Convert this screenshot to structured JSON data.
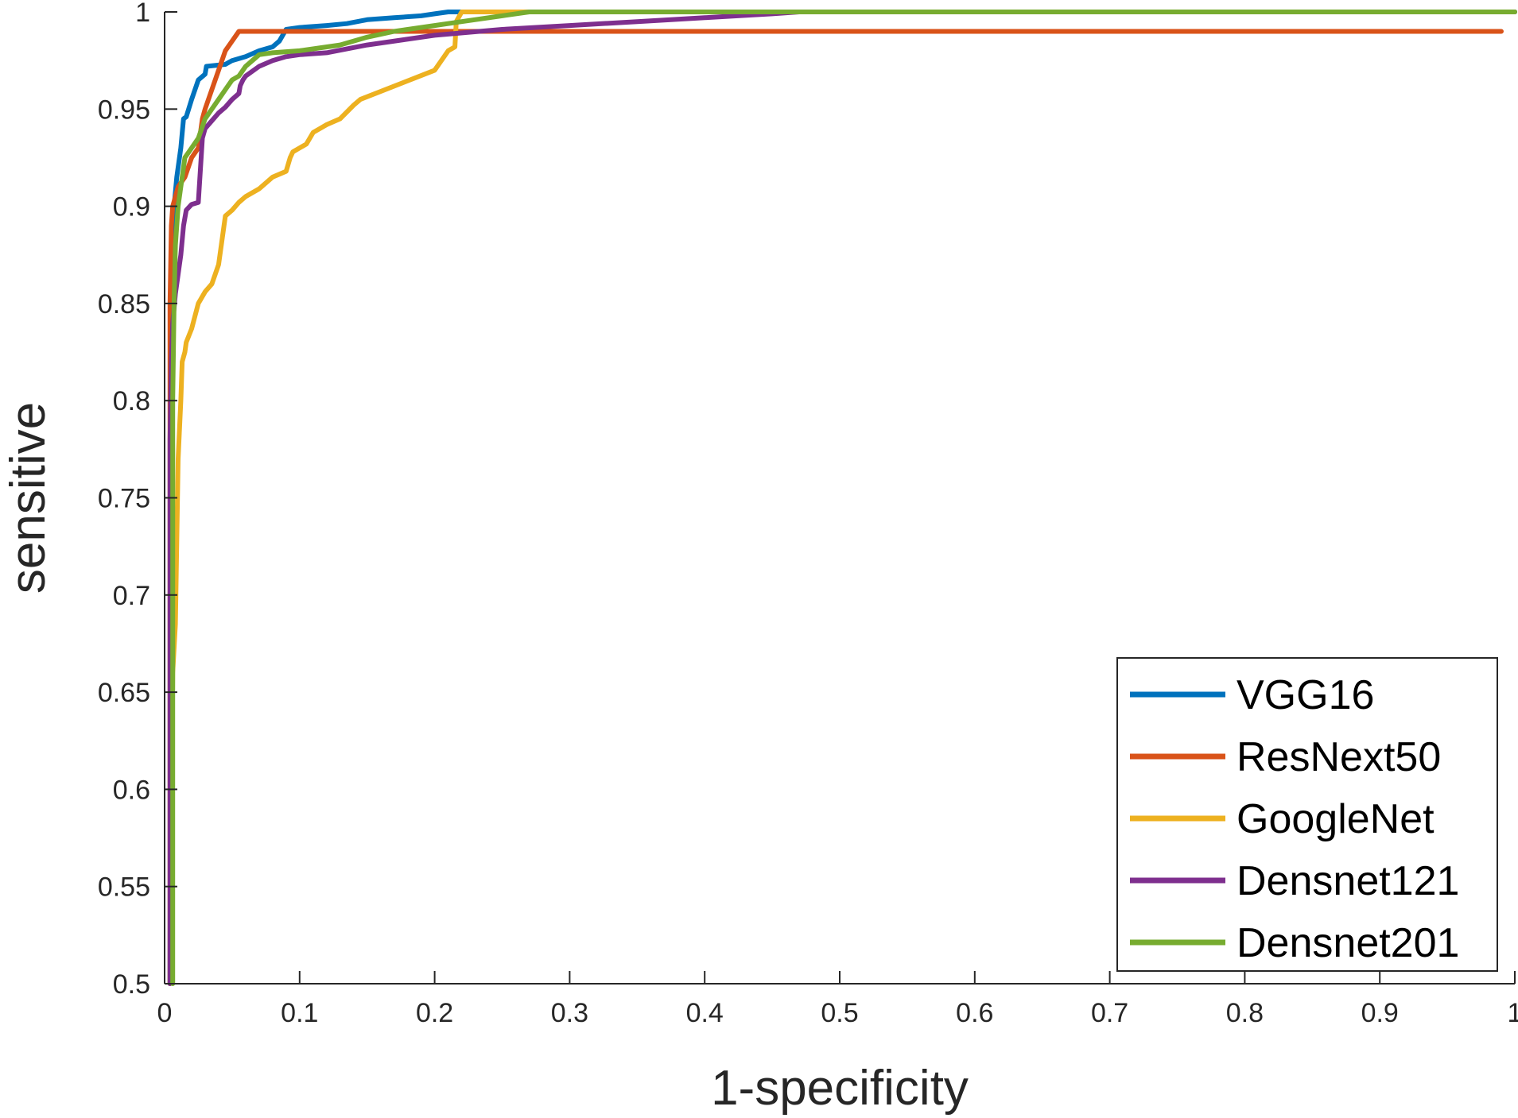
{
  "chart_data": {
    "type": "line",
    "title": "",
    "xlabel": "1-specificity",
    "ylabel": "sensitive",
    "xlim": [
      0,
      1
    ],
    "ylim": [
      0.5,
      1
    ],
    "grid": false,
    "legend_position": "bottom-right",
    "x_ticks": [
      0,
      0.1,
      0.2,
      0.3,
      0.4,
      0.5,
      0.6,
      0.7,
      0.8,
      0.9,
      1
    ],
    "x_tick_labels": [
      "0",
      "0.1",
      "0.2",
      "0.3",
      "0.4",
      "0.5",
      "0.6",
      "0.7",
      "0.8",
      "0.9",
      "1"
    ],
    "y_ticks": [
      0.5,
      0.55,
      0.6,
      0.65,
      0.7,
      0.75,
      0.8,
      0.85,
      0.9,
      0.95,
      1
    ],
    "y_tick_labels": [
      "0.5",
      "0.55",
      "0.6",
      "0.65",
      "0.7",
      "0.75",
      "0.8",
      "0.85",
      "0.9",
      "0.95",
      "1"
    ],
    "series": [
      {
        "name": "VGG16",
        "color": "#0072BD",
        "x": [
          0.004,
          0.005,
          0.006,
          0.007,
          0.009,
          0.01,
          0.012,
          0.014,
          0.016,
          0.02,
          0.025,
          0.03,
          0.031,
          0.045,
          0.05,
          0.06,
          0.07,
          0.08,
          0.085,
          0.09,
          0.1,
          0.12,
          0.135,
          0.15,
          0.17,
          0.19,
          0.2,
          0.21,
          0.22,
          0.25,
          0.3,
          0.4,
          0.5,
          0.6,
          0.7,
          0.8,
          0.9,
          1.0
        ],
        "y": [
          0.5,
          0.82,
          0.87,
          0.9,
          0.915,
          0.92,
          0.93,
          0.945,
          0.946,
          0.955,
          0.965,
          0.968,
          0.972,
          0.973,
          0.975,
          0.977,
          0.98,
          0.982,
          0.985,
          0.991,
          0.992,
          0.993,
          0.994,
          0.996,
          0.997,
          0.998,
          0.999,
          1.0,
          1.0,
          1.0,
          1.0,
          1.0,
          1.0,
          1.0,
          1.0,
          1.0,
          1.0,
          1.0
        ]
      },
      {
        "name": "ResNext50",
        "color": "#D95319",
        "x": [
          0.004,
          0.004,
          0.005,
          0.006,
          0.008,
          0.01,
          0.015,
          0.02,
          0.025,
          0.028,
          0.03,
          0.035,
          0.04,
          0.045,
          0.05,
          0.055,
          0.06,
          0.1,
          0.2,
          0.3,
          0.4,
          0.5,
          0.6,
          0.7,
          0.8,
          0.9,
          0.99
        ],
        "y": [
          0.5,
          0.85,
          0.89,
          0.9,
          0.905,
          0.91,
          0.915,
          0.925,
          0.93,
          0.945,
          0.95,
          0.96,
          0.97,
          0.98,
          0.985,
          0.99,
          0.99,
          0.99,
          0.99,
          0.99,
          0.99,
          0.99,
          0.99,
          0.99,
          0.99,
          0.99,
          0.99
        ]
      },
      {
        "name": "GoogleNet",
        "color": "#EDB120",
        "x": [
          0.004,
          0.006,
          0.008,
          0.01,
          0.012,
          0.013,
          0.015,
          0.016,
          0.02,
          0.025,
          0.03,
          0.035,
          0.04,
          0.045,
          0.05,
          0.055,
          0.06,
          0.065,
          0.07,
          0.08,
          0.09,
          0.093,
          0.095,
          0.1,
          0.105,
          0.11,
          0.115,
          0.12,
          0.13,
          0.14,
          0.145,
          0.2,
          0.205,
          0.21,
          0.215,
          0.216,
          0.22,
          0.25,
          0.3,
          0.4,
          0.5,
          0.6,
          0.7,
          0.8,
          0.9,
          1.0
        ],
        "y": [
          0.5,
          0.66,
          0.685,
          0.77,
          0.8,
          0.82,
          0.825,
          0.83,
          0.837,
          0.85,
          0.856,
          0.86,
          0.87,
          0.895,
          0.898,
          0.902,
          0.905,
          0.907,
          0.909,
          0.915,
          0.918,
          0.925,
          0.928,
          0.93,
          0.932,
          0.938,
          0.94,
          0.942,
          0.945,
          0.952,
          0.955,
          0.97,
          0.975,
          0.98,
          0.982,
          0.995,
          1.0,
          1.0,
          1.0,
          1.0,
          1.0,
          1.0,
          1.0,
          1.0,
          1.0,
          1.0
        ]
      },
      {
        "name": "Densnet121",
        "color": "#7E2F8E",
        "x": [
          0.004,
          0.004,
          0.005,
          0.006,
          0.008,
          0.01,
          0.012,
          0.014,
          0.016,
          0.02,
          0.025,
          0.028,
          0.03,
          0.035,
          0.04,
          0.045,
          0.05,
          0.055,
          0.056,
          0.058,
          0.06,
          0.07,
          0.08,
          0.09,
          0.1,
          0.12,
          0.15,
          0.2,
          0.25,
          0.3,
          0.35,
          0.4,
          0.45,
          0.47,
          0.5,
          0.6,
          0.7,
          0.8,
          0.9,
          1.0
        ],
        "y": [
          0.5,
          0.78,
          0.82,
          0.84,
          0.855,
          0.865,
          0.875,
          0.89,
          0.898,
          0.901,
          0.902,
          0.935,
          0.94,
          0.944,
          0.948,
          0.951,
          0.955,
          0.958,
          0.962,
          0.965,
          0.967,
          0.972,
          0.975,
          0.977,
          0.978,
          0.979,
          0.983,
          0.988,
          0.991,
          0.993,
          0.995,
          0.997,
          0.999,
          1.0,
          1.0,
          1.0,
          1.0,
          1.0,
          1.0,
          1.0
        ]
      },
      {
        "name": "Densnet201",
        "color": "#77AC30",
        "x": [
          0.006,
          0.006,
          0.007,
          0.008,
          0.01,
          0.012,
          0.015,
          0.02,
          0.025,
          0.03,
          0.035,
          0.04,
          0.045,
          0.05,
          0.055,
          0.06,
          0.065,
          0.07,
          0.08,
          0.1,
          0.13,
          0.15,
          0.17,
          0.2,
          0.22,
          0.25,
          0.27,
          0.3,
          0.4,
          0.5,
          0.6,
          0.7,
          0.8,
          0.9,
          1.0
        ],
        "y": [
          0.5,
          0.8,
          0.85,
          0.88,
          0.9,
          0.91,
          0.925,
          0.93,
          0.935,
          0.945,
          0.95,
          0.955,
          0.96,
          0.965,
          0.967,
          0.972,
          0.975,
          0.978,
          0.979,
          0.98,
          0.983,
          0.987,
          0.99,
          0.993,
          0.995,
          0.998,
          1.0,
          1.0,
          1.0,
          1.0,
          1.0,
          1.0,
          1.0,
          1.0,
          1.0
        ]
      }
    ]
  }
}
